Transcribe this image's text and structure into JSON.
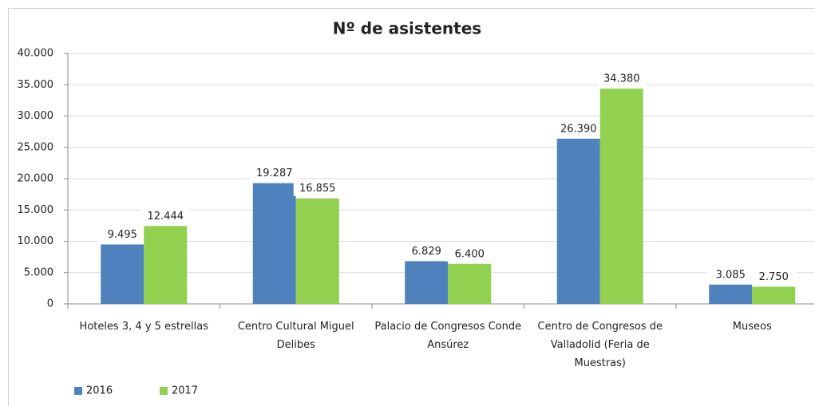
{
  "chart_data": {
    "type": "bar",
    "title": "Nº de asistentes",
    "categories": [
      "Hoteles 3, 4 y 5 estrellas",
      "Centro Cultural Miguel Delibes",
      "Palacio de Congresos Conde Ansúrez",
      "Centro de Congresos de Valladolid (Feria de Muestras)",
      "Museos"
    ],
    "series": [
      {
        "name": "2016",
        "color": "#4f81bd",
        "values": [
          9495,
          19287,
          6829,
          26390,
          3085
        ],
        "value_labels": [
          "9.495",
          "19.287",
          "6.829",
          "26.390",
          "3.085"
        ]
      },
      {
        "name": "2017",
        "color": "#92d050",
        "values": [
          12444,
          16855,
          6400,
          34380,
          2750
        ],
        "value_labels": [
          "12.444",
          "16.855",
          "6.400",
          "34.380",
          "2.750"
        ]
      }
    ],
    "ylim": [
      0,
      40000
    ],
    "yticks": [
      0,
      {
        "value": 5000,
        "label": "5.000"
      },
      {
        "value": 10000,
        "label": "10.000"
      },
      {
        "value": 15000,
        "label": "15.000"
      },
      {
        "value": 20000,
        "label": "20.000"
      },
      {
        "value": 25000,
        "label": "25.000"
      },
      {
        "value": 30000,
        "label": "30.000"
      },
      {
        "value": 35000,
        "label": "35.000"
      },
      {
        "value": 40000,
        "label": "40.000"
      }
    ],
    "grid": true,
    "legend": "bottom-left"
  }
}
